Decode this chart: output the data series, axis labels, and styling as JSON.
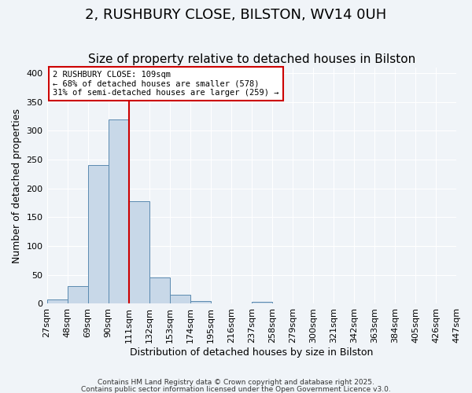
{
  "title": "2, RUSHBURY CLOSE, BILSTON, WV14 0UH",
  "subtitle": "Size of property relative to detached houses in Bilston",
  "xlabel": "Distribution of detached houses by size in Bilston",
  "ylabel": "Number of detached properties",
  "footnote1": "Contains HM Land Registry data © Crown copyright and database right 2025.",
  "footnote2": "Contains public sector information licensed under the Open Government Licence v3.0.",
  "bar_edges": [
    27,
    48,
    69,
    90,
    111,
    132,
    153,
    174,
    195,
    216,
    237,
    258,
    279,
    300,
    321,
    342,
    363,
    384,
    405,
    426,
    447
  ],
  "bar_heights": [
    8,
    31,
    240,
    320,
    178,
    45,
    16,
    5,
    0,
    0,
    3,
    0,
    0,
    0,
    0,
    0,
    0,
    0,
    0,
    1
  ],
  "bar_color": "#c8d8e8",
  "bar_edge_color": "#5a8ab0",
  "vline_x": 111,
  "vline_color": "#cc0000",
  "annotation_line1": "2 RUSHBURY CLOSE: 109sqm",
  "annotation_line2": "← 68% of detached houses are smaller (578)",
  "annotation_line3": "31% of semi-detached houses are larger (259) →",
  "annotation_box_color": "#cc0000",
  "ylim": [
    0,
    410
  ],
  "yticks": [
    0,
    50,
    100,
    150,
    200,
    250,
    300,
    350,
    400
  ],
  "bg_color": "#f0f4f8",
  "grid_color": "#ffffff",
  "title_fontsize": 13,
  "subtitle_fontsize": 11,
  "axis_fontsize": 9,
  "tick_fontsize": 8
}
